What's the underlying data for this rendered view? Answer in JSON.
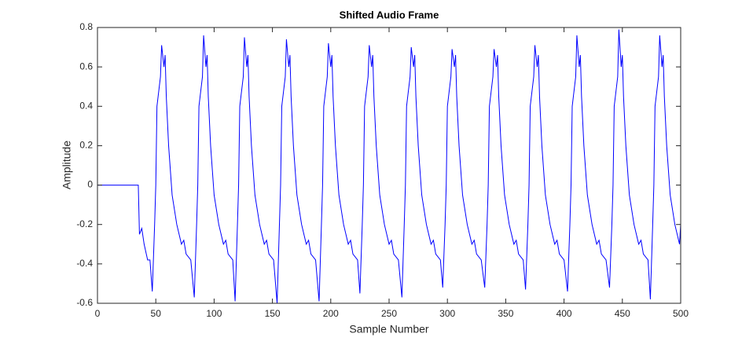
{
  "chart_data": {
    "type": "line",
    "title": "Shifted Audio Frame",
    "x_label": "Sample Number",
    "y_label": "Amplitude",
    "x": [
      0,
      35,
      36,
      38,
      40,
      43,
      45,
      47,
      49,
      50,
      51,
      52,
      54,
      55,
      57,
      58,
      59,
      61,
      64,
      68,
      72,
      74,
      76,
      80,
      83,
      85,
      86,
      87,
      88,
      90,
      91,
      93,
      94,
      95,
      97,
      100,
      104,
      108,
      110,
      112,
      116,
      118,
      120,
      121,
      122,
      123,
      125,
      126,
      128,
      129,
      130,
      132,
      135,
      139,
      143,
      145,
      147,
      151,
      154,
      156,
      157,
      158,
      159,
      161,
      162,
      164,
      165,
      166,
      168,
      171,
      175,
      179,
      181,
      183,
      187,
      190,
      192,
      193,
      194,
      195,
      197,
      198,
      200,
      201,
      202,
      204,
      207,
      211,
      215,
      217,
      219,
      223,
      225,
      227,
      228,
      229,
      230,
      232,
      233,
      235,
      236,
      237,
      239,
      242,
      246,
      250,
      252,
      254,
      258,
      261,
      263,
      264,
      265,
      266,
      268,
      269,
      271,
      272,
      273,
      275,
      278,
      282,
      286,
      288,
      290,
      294,
      296,
      298,
      299,
      300,
      301,
      303,
      304,
      306,
      307,
      308,
      310,
      313,
      317,
      321,
      323,
      325,
      329,
      332,
      334,
      335,
      336,
      337,
      339,
      340,
      342,
      343,
      344,
      346,
      349,
      353,
      357,
      359,
      361,
      365,
      367,
      369,
      370,
      371,
      372,
      374,
      375,
      377,
      378,
      379,
      381,
      384,
      388,
      392,
      394,
      396,
      400,
      403,
      405,
      406,
      407,
      408,
      410,
      411,
      413,
      414,
      415,
      417,
      420,
      424,
      428,
      430,
      432,
      436,
      439,
      441,
      442,
      443,
      444,
      446,
      447,
      449,
      450,
      451,
      453,
      456,
      460,
      464,
      466,
      468,
      472,
      474,
      476,
      477,
      478,
      479,
      481,
      482,
      484,
      485,
      486,
      488,
      491,
      495,
      499,
      500
    ],
    "series": [
      {
        "name": "Amplitude",
        "color": "#0000ff",
        "values": [
          0,
          0,
          -0.25,
          -0.22,
          -0.3,
          -0.38,
          -0.38,
          -0.54,
          -0.2,
          0,
          0.4,
          0.45,
          0.55,
          0.71,
          0.6,
          0.66,
          0.45,
          0.2,
          -0.05,
          -0.2,
          -0.3,
          -0.28,
          -0.35,
          -0.38,
          -0.57,
          -0.2,
          0,
          0.4,
          0.45,
          0.55,
          0.76,
          0.6,
          0.66,
          0.45,
          0.2,
          -0.05,
          -0.2,
          -0.3,
          -0.28,
          -0.35,
          -0.38,
          -0.59,
          -0.2,
          0,
          0.4,
          0.45,
          0.55,
          0.75,
          0.6,
          0.66,
          0.45,
          0.2,
          -0.05,
          -0.2,
          -0.3,
          -0.28,
          -0.35,
          -0.38,
          -0.6,
          -0.2,
          0,
          0.4,
          0.45,
          0.55,
          0.74,
          0.6,
          0.66,
          0.45,
          0.2,
          -0.05,
          -0.2,
          -0.3,
          -0.28,
          -0.35,
          -0.38,
          -0.59,
          -0.2,
          0,
          0.4,
          0.45,
          0.55,
          0.72,
          0.6,
          0.66,
          0.45,
          0.2,
          -0.05,
          -0.2,
          -0.3,
          -0.28,
          -0.35,
          -0.38,
          -0.55,
          -0.2,
          0,
          0.4,
          0.45,
          0.55,
          0.71,
          0.6,
          0.66,
          0.45,
          0.2,
          -0.05,
          -0.2,
          -0.3,
          -0.28,
          -0.35,
          -0.38,
          -0.57,
          -0.2,
          0,
          0.4,
          0.45,
          0.55,
          0.7,
          0.6,
          0.66,
          0.45,
          0.2,
          -0.05,
          -0.2,
          -0.3,
          -0.28,
          -0.35,
          -0.38,
          -0.52,
          -0.2,
          0,
          0.4,
          0.45,
          0.55,
          0.69,
          0.6,
          0.66,
          0.45,
          0.2,
          -0.05,
          -0.2,
          -0.3,
          -0.28,
          -0.35,
          -0.38,
          -0.52,
          -0.2,
          0,
          0.4,
          0.45,
          0.55,
          0.69,
          0.6,
          0.66,
          0.45,
          0.2,
          -0.05,
          -0.2,
          -0.3,
          -0.28,
          -0.35,
          -0.38,
          -0.53,
          -0.2,
          0,
          0.4,
          0.45,
          0.55,
          0.71,
          0.6,
          0.66,
          0.45,
          0.2,
          -0.05,
          -0.2,
          -0.3,
          -0.28,
          -0.35,
          -0.38,
          -0.54,
          -0.2,
          0,
          0.4,
          0.45,
          0.55,
          0.76,
          0.6,
          0.66,
          0.45,
          0.2,
          -0.05,
          -0.2,
          -0.3,
          -0.28,
          -0.35,
          -0.38,
          -0.52,
          -0.2,
          0,
          0.4,
          0.45,
          0.55,
          0.79,
          0.6,
          0.66,
          0.45,
          0.2,
          -0.05,
          -0.2,
          -0.3,
          -0.28,
          -0.35,
          -0.38,
          -0.58,
          -0.2,
          0,
          0.4,
          0.45,
          0.55,
          0.76,
          0.6,
          0.66,
          0.45,
          0.2,
          -0.05,
          -0.2,
          -0.3,
          -0.2
        ]
      }
    ],
    "xlim": [
      0,
      500
    ],
    "xticks": [
      0,
      50,
      100,
      150,
      200,
      250,
      300,
      350,
      400,
      450,
      500
    ],
    "ylim": [
      -0.6,
      0.8
    ],
    "yticks": [
      -0.6,
      -0.4,
      -0.2,
      0,
      0.2,
      0.4,
      0.6,
      0.8
    ],
    "grid": false
  }
}
